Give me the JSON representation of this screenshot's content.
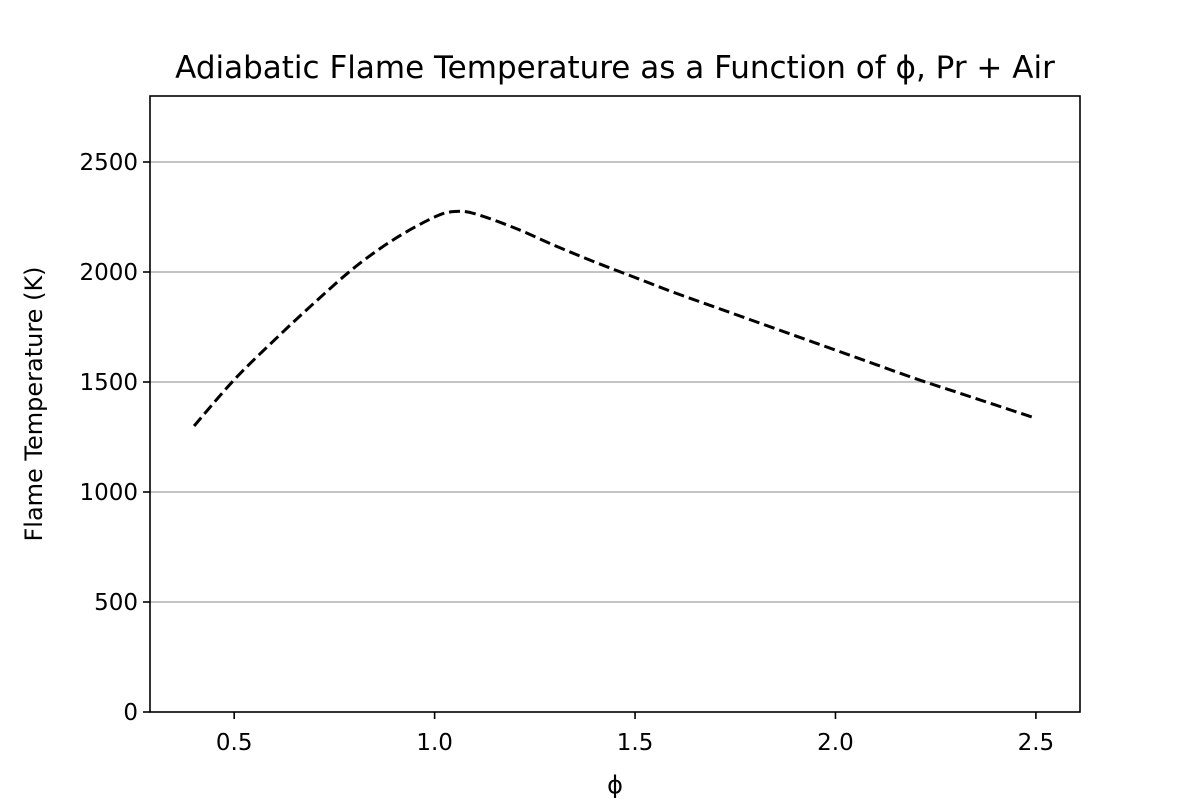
{
  "chart_data": {
    "type": "line",
    "title": "Adiabatic Flame Temperature as a Function of ϕ, Pr + Air",
    "xlabel": "ϕ",
    "ylabel": "Flame Temperature (K)",
    "xlim": [
      0.29,
      2.61
    ],
    "ylim": [
      0,
      2800
    ],
    "x_ticks": [
      0.5,
      1.0,
      1.5,
      2.0,
      2.5
    ],
    "x_tick_labels": [
      "0.5",
      "1.0",
      "1.5",
      "2.0",
      "2.5"
    ],
    "y_ticks": [
      0,
      500,
      1000,
      1500,
      2000,
      2500
    ],
    "y_tick_labels": [
      "0",
      "500",
      "1000",
      "1500",
      "2000",
      "2500"
    ],
    "grid": "y-major",
    "series": [
      {
        "line_style": "dashed",
        "color": "#000000",
        "x": [
          0.4,
          0.5,
          0.6,
          0.7,
          0.8,
          0.9,
          1.0,
          1.05,
          1.1,
          1.2,
          1.3,
          1.4,
          1.5,
          1.6,
          1.7,
          1.8,
          1.9,
          2.0,
          2.1,
          2.2,
          2.3,
          2.4,
          2.5
        ],
        "y": [
          1300,
          1510,
          1690,
          1860,
          2020,
          2150,
          2250,
          2275,
          2265,
          2200,
          2120,
          2045,
          1975,
          1905,
          1840,
          1775,
          1710,
          1645,
          1580,
          1515,
          1455,
          1395,
          1335
        ]
      }
    ]
  }
}
